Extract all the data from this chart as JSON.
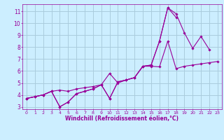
{
  "title": "",
  "xlabel": "Windchill (Refroidissement éolien,°C)",
  "ylabel": "",
  "bg_color": "#cceeff",
  "grid_color": "#aaccdd",
  "line_color": "#990099",
  "xlim": [
    -0.5,
    23.5
  ],
  "ylim": [
    2.8,
    11.6
  ],
  "xticks": [
    0,
    1,
    2,
    3,
    4,
    5,
    6,
    7,
    8,
    9,
    10,
    11,
    12,
    13,
    14,
    15,
    16,
    17,
    18,
    19,
    20,
    21,
    22,
    23
  ],
  "yticks": [
    3,
    4,
    5,
    6,
    7,
    8,
    9,
    10,
    11
  ],
  "line1_x": [
    0,
    1,
    2,
    3,
    4,
    5,
    6,
    7,
    8,
    9,
    10,
    11,
    12,
    13,
    14,
    15,
    16,
    17,
    18,
    19,
    20,
    21,
    22,
    23
  ],
  "line1_y": [
    3.7,
    3.85,
    4.0,
    4.3,
    4.4,
    4.3,
    4.5,
    4.6,
    4.7,
    4.85,
    5.8,
    5.0,
    5.25,
    5.45,
    6.4,
    6.4,
    6.35,
    8.5,
    6.2,
    6.4,
    6.5,
    6.6,
    6.7,
    6.8
  ],
  "line2_x": [
    0,
    1,
    2,
    3,
    4,
    5,
    6,
    7,
    8,
    9,
    10,
    11,
    12,
    13,
    14,
    15,
    16,
    17,
    18,
    19,
    20,
    21,
    22,
    23
  ],
  "line2_y": [
    3.7,
    3.85,
    4.0,
    4.3,
    3.0,
    3.4,
    4.1,
    4.3,
    4.5,
    4.85,
    3.7,
    5.1,
    5.25,
    5.45,
    6.4,
    6.5,
    8.5,
    11.3,
    10.8,
    9.2,
    7.9,
    8.9,
    7.8,
    null
  ],
  "line3_x": [
    0,
    1,
    2,
    3,
    4,
    5,
    6,
    7,
    8,
    9,
    10,
    11,
    12,
    13,
    14,
    15,
    16,
    17,
    18,
    19,
    20,
    21,
    22,
    23
  ],
  "line3_y": [
    3.7,
    3.85,
    4.0,
    4.3,
    3.0,
    3.4,
    4.1,
    4.3,
    4.5,
    4.85,
    3.7,
    5.1,
    5.25,
    5.45,
    6.4,
    6.5,
    8.5,
    11.3,
    10.5,
    null,
    null,
    null,
    null,
    null
  ]
}
